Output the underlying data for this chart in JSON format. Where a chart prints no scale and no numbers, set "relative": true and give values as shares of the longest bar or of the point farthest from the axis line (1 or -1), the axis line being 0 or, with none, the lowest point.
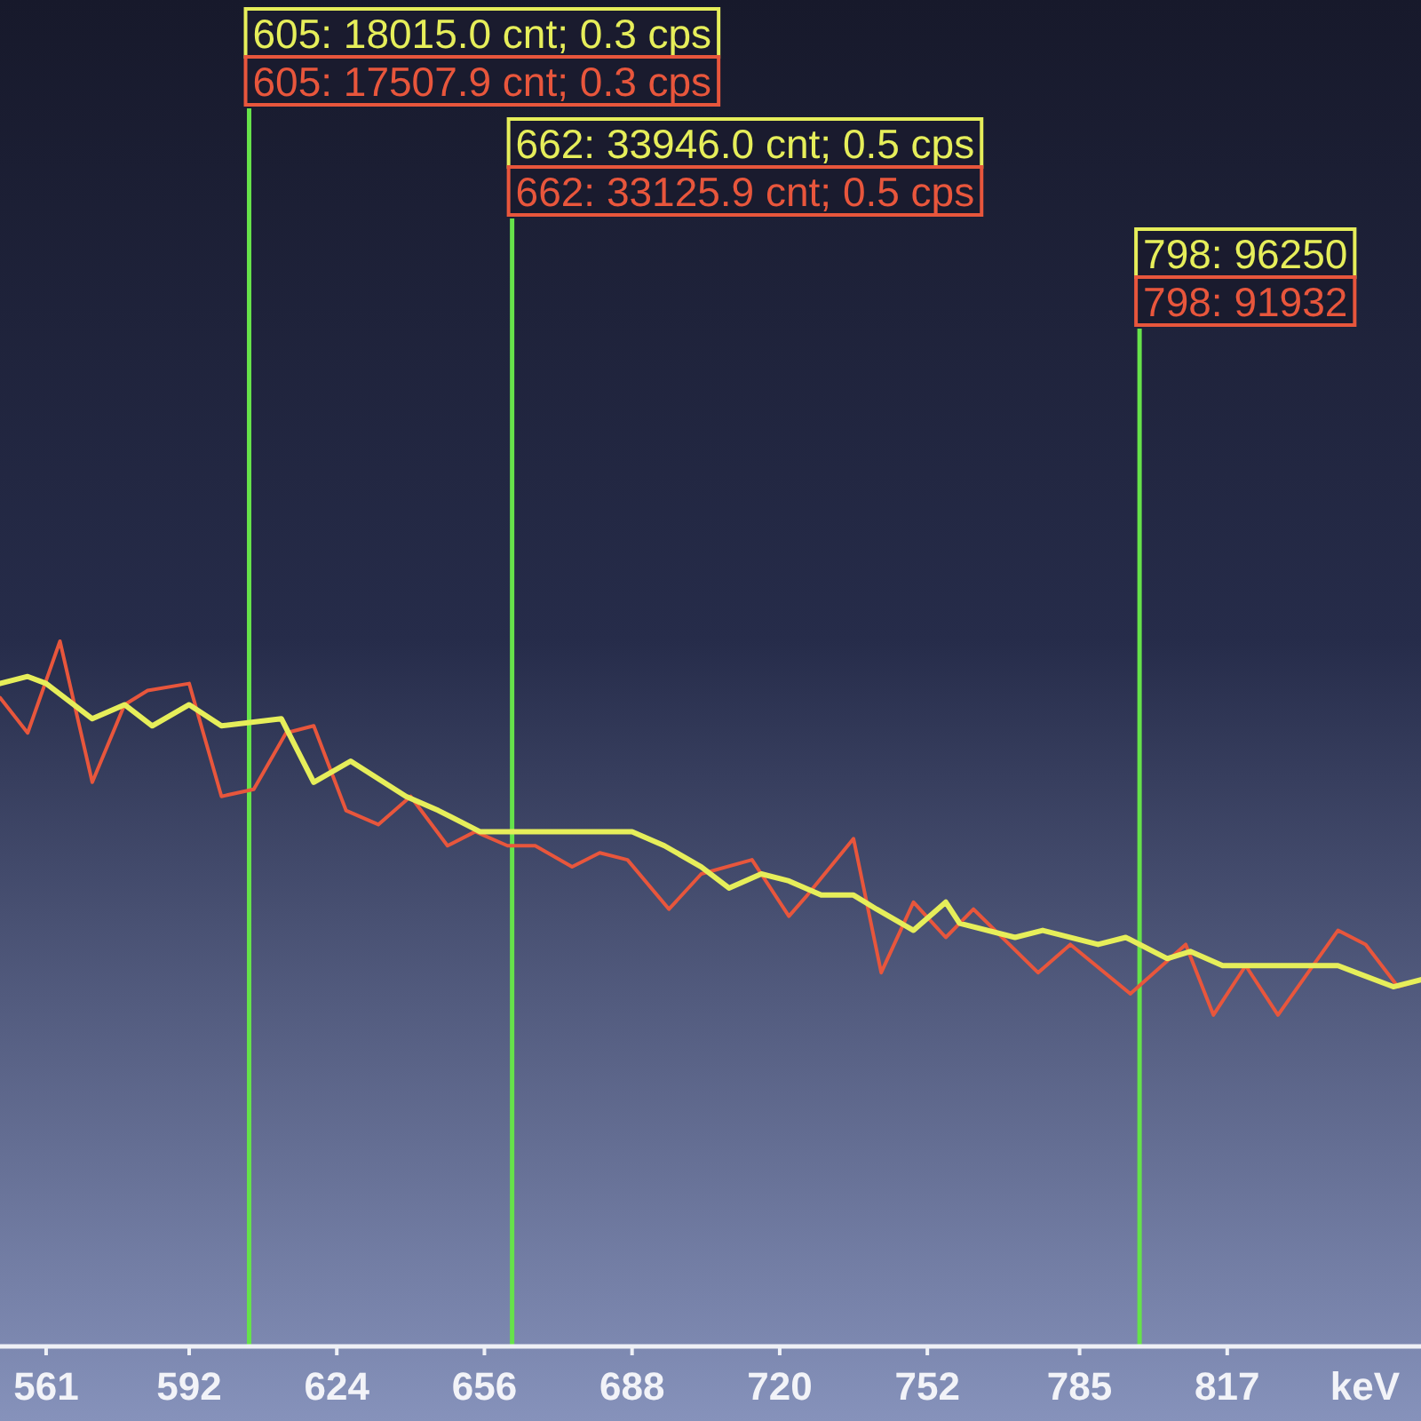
{
  "chart_data": {
    "type": "line",
    "relative": true,
    "xlabel": "keV",
    "xlim": [
      551,
      859
    ],
    "xticks": [
      561,
      592,
      624,
      656,
      688,
      720,
      752,
      785,
      817
    ],
    "series": [
      {
        "color": "#e6ee5a",
        "x": [
          551,
          557,
          561,
          571,
          578,
          584,
          592,
          599,
          612,
          619,
          627,
          639,
          646,
          655,
          668,
          679,
          688,
          695,
          703,
          709,
          716,
          722,
          729,
          736,
          741,
          749,
          756,
          759,
          771,
          777,
          789,
          795,
          804,
          809,
          816,
          828,
          841,
          853,
          859
        ],
        "values": [
          0.94,
          0.95,
          0.94,
          0.89,
          0.91,
          0.88,
          0.91,
          0.88,
          0.89,
          0.8,
          0.83,
          0.78,
          0.76,
          0.73,
          0.73,
          0.73,
          0.73,
          0.71,
          0.68,
          0.65,
          0.67,
          0.66,
          0.64,
          0.64,
          0.62,
          0.59,
          0.63,
          0.6,
          0.58,
          0.59,
          0.57,
          0.58,
          0.55,
          0.56,
          0.54,
          0.54,
          0.54,
          0.51,
          0.52
        ]
      },
      {
        "color": "#e8563c",
        "x": [
          551,
          557,
          564,
          571,
          578,
          583,
          592,
          599,
          606,
          613,
          619,
          626,
          633,
          640,
          648,
          654,
          661,
          667,
          675,
          681,
          687,
          696,
          703,
          714,
          722,
          726,
          736,
          742,
          749,
          756,
          762,
          776,
          783,
          796,
          808,
          814,
          821,
          828,
          841,
          847,
          854,
          859
        ],
        "values": [
          0.92,
          0.87,
          1.0,
          0.8,
          0.91,
          0.93,
          0.94,
          0.78,
          0.79,
          0.87,
          0.88,
          0.76,
          0.74,
          0.78,
          0.71,
          0.73,
          0.71,
          0.71,
          0.68,
          0.7,
          0.69,
          0.62,
          0.67,
          0.69,
          0.61,
          0.64,
          0.72,
          0.53,
          0.63,
          0.58,
          0.62,
          0.53,
          0.57,
          0.5,
          0.57,
          0.47,
          0.54,
          0.47,
          0.59,
          0.57,
          0.51,
          0.52
        ]
      }
    ],
    "ref_lines": [
      {
        "axis": "x",
        "value": 605,
        "label": "605: 18015.0 cnt; 0.3 cps",
        "color": "#66e24a"
      },
      {
        "axis": "x",
        "value": 662,
        "label": "662: 33946.0 cnt; 0.5 cps",
        "color": "#66e24a"
      },
      {
        "axis": "x",
        "value": 798,
        "label": "798: 96250",
        "color": "#66e24a"
      }
    ],
    "annotations": [
      "605: 17507.9 cnt; 0.3 cps",
      "662: 33125.9 cnt; 0.5 cps",
      "798: 91932"
    ]
  }
}
